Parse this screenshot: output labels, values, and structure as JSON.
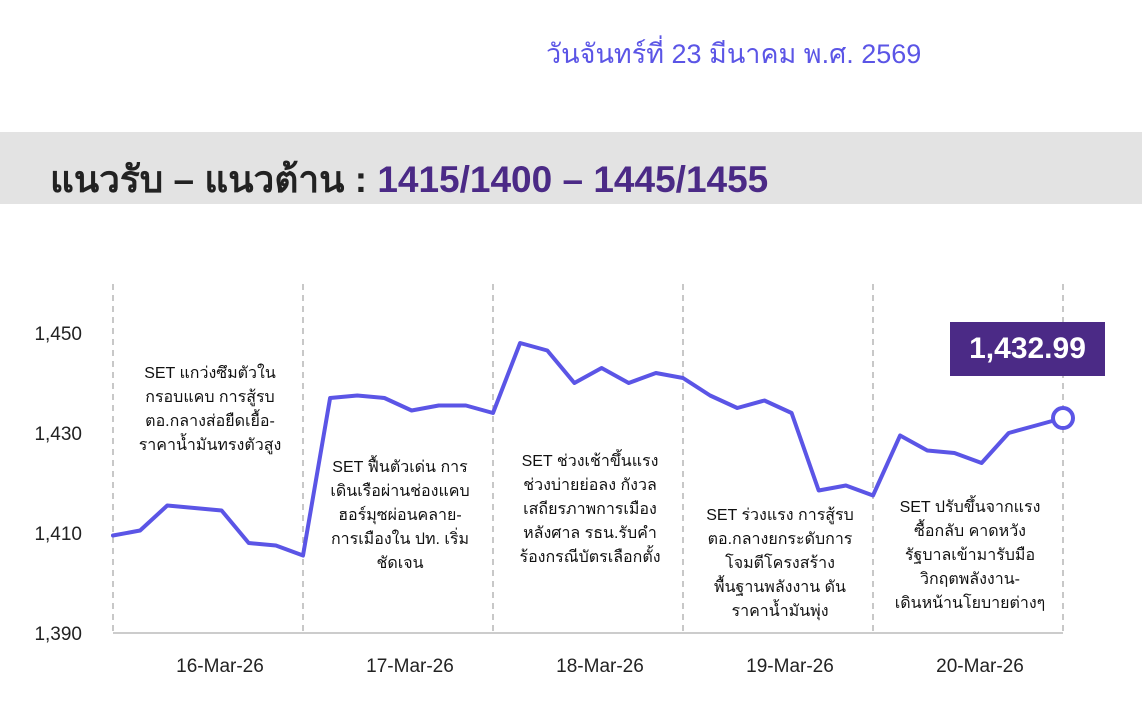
{
  "header": {
    "date": "วันจันทร์ที่ 23 มีนาคม พ.ศ. 2569",
    "title_label": "แนวรับ – แนวต้าน : ",
    "title_levels": "1415/1400 – 1445/1455"
  },
  "last_value_label": "1,432.99",
  "colors": {
    "line": "#5b55e6",
    "accent": "#4b2a86",
    "banner": "#e3e3e3"
  },
  "chart_data": {
    "type": "line",
    "title": "",
    "xlabel": "",
    "ylabel": "",
    "ylim": [
      1390,
      1458
    ],
    "yticks": [
      1390,
      1410,
      1430,
      1450
    ],
    "ytick_labels": [
      "1,390",
      "1,410",
      "1,430",
      "1,450"
    ],
    "grid": false,
    "days": [
      "16-Mar-26",
      "17-Mar-26",
      "18-Mar-26",
      "19-Mar-26",
      "20-Mar-26"
    ],
    "series": [
      {
        "name": "",
        "values": [
          1409.5,
          1410.5,
          1415.5,
          1415.0,
          1414.5,
          1408.0,
          1407.5,
          1405.5,
          1437.0,
          1437.5,
          1437.0,
          1434.5,
          1435.5,
          1435.5,
          1434.0,
          1448.0,
          1446.5,
          1440.0,
          1443.0,
          1440.0,
          1442.0,
          1441.0,
          1437.5,
          1435.0,
          1436.5,
          1434.0,
          1418.5,
          1419.5,
          1417.5,
          1429.5,
          1426.5,
          1426.0,
          1424.0,
          1430.0,
          1431.5,
          1432.99
        ],
        "day_breaks": [
          7,
          14,
          21,
          28,
          35
        ]
      }
    ],
    "annotations": [
      {
        "day": "16-Mar-26",
        "lines": [
          "SET แกว่งซึมตัวใน",
          "กรอบแคบ การสู้รบ",
          "ตอ.กลางส่อยืดเยื้อ-",
          "ราคาน้ำมันทรงตัวสูง"
        ]
      },
      {
        "day": "17-Mar-26",
        "lines": [
          "SET ฟื้นตัวเด่น การ",
          "เดินเรือผ่านช่องแคบ",
          "ฮอร์มุซผ่อนคลาย-",
          "การเมืองใน ปท. เริ่ม",
          "ชัดเจน"
        ]
      },
      {
        "day": "18-Mar-26",
        "lines": [
          "SET ช่วงเช้าขึ้นแรง",
          "ช่วงบ่ายย่อลง กังวล",
          "เสถียรภาพการเมือง",
          "หลังศาล รธน.รับคำ",
          "ร้องกรณีบัตรเลือกตั้ง"
        ]
      },
      {
        "day": "19-Mar-26",
        "lines": [
          "SET ร่วงแรง การสู้รบ",
          "ตอ.กลางยกระดับการ",
          "โจมตีโครงสร้าง",
          "พื้นฐานพลังงาน ดัน",
          "ราคาน้ำมันพุ่ง"
        ]
      },
      {
        "day": "20-Mar-26",
        "lines": [
          "SET ปรับขึ้นจากแรง",
          "ซื้อกลับ คาดหวัง",
          "รัฐบาลเข้ามารับมือ",
          "วิกฤตพลังงาน-",
          "เดินหน้านโยบายต่างๆ"
        ]
      }
    ]
  }
}
